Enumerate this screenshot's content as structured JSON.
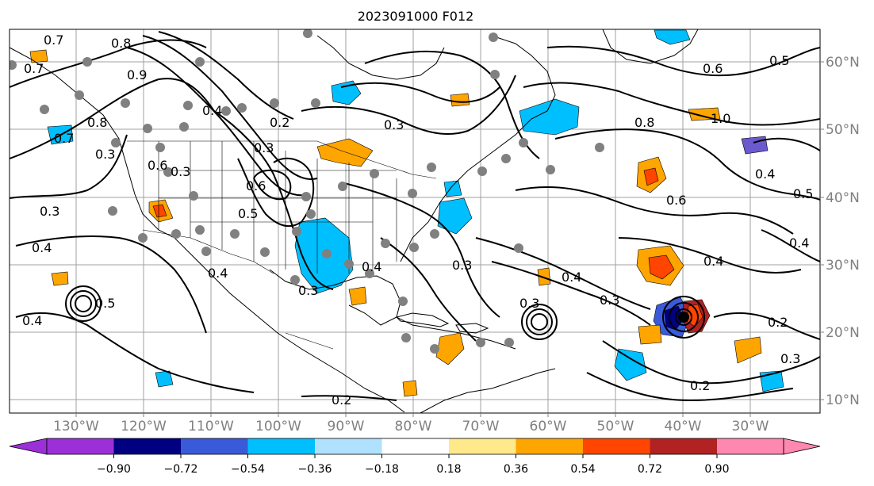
{
  "title": "2023091000 F012",
  "lon_labels": [
    "130°W",
    "120°W",
    "110°W",
    "100°W",
    "90°W",
    "80°W",
    "70°W",
    "60°W",
    "50°W",
    "40°W",
    "30°W"
  ],
  "lat_labels": [
    "60°N",
    "50°N",
    "40°N",
    "30°N",
    "20°N",
    "10°N"
  ],
  "colorbar": {
    "tick_labels": [
      "−0.90",
      "−0.72",
      "−0.54",
      "−0.36",
      "−0.18",
      "0.18",
      "0.36",
      "0.54",
      "0.72",
      "0.90"
    ],
    "colors": [
      "#9b30d9",
      "#000080",
      "#3a5bd9",
      "#00bfff",
      "#b0e2ff",
      "#ffffff",
      "#ffe98a",
      "#ffa500",
      "#ff4500",
      "#b22222",
      "#ff88b0"
    ]
  },
  "contour_labels": [
    {
      "text": "0.7"
    },
    {
      "text": "0.8"
    },
    {
      "text": "0.9"
    },
    {
      "text": "0.8"
    },
    {
      "text": "0.4"
    },
    {
      "text": "0.7"
    },
    {
      "text": "0.3"
    },
    {
      "text": "0.2"
    },
    {
      "text": "0.3"
    },
    {
      "text": "0.3"
    },
    {
      "text": "0.3"
    },
    {
      "text": "0.6"
    },
    {
      "text": "0.5"
    },
    {
      "text": "0.3"
    },
    {
      "text": "0.4"
    },
    {
      "text": "0.4"
    },
    {
      "text": "0.4"
    },
    {
      "text": "0.3"
    },
    {
      "text": "0.5"
    },
    {
      "text": "0.4"
    },
    {
      "text": "0.3"
    },
    {
      "text": "0.2"
    },
    {
      "text": "0.6"
    },
    {
      "text": "0.5"
    },
    {
      "text": "0.8"
    },
    {
      "text": "1.0"
    },
    {
      "text": "0.6"
    },
    {
      "text": "0.4"
    },
    {
      "text": "0.5"
    },
    {
      "text": "0.4"
    },
    {
      "text": "0.4"
    },
    {
      "text": "0.4"
    },
    {
      "text": "0.3"
    },
    {
      "text": "0.2"
    },
    {
      "text": "0.3"
    },
    {
      "text": "0.2"
    },
    {
      "text": "0.6"
    },
    {
      "text": "0.7"
    },
    {
      "text": "0.3"
    }
  ],
  "colors": {
    "contour": "#000000",
    "coast": "#000000",
    "grid": "#a0a0a0",
    "station": "#808080",
    "axis_label": "#808080"
  }
}
